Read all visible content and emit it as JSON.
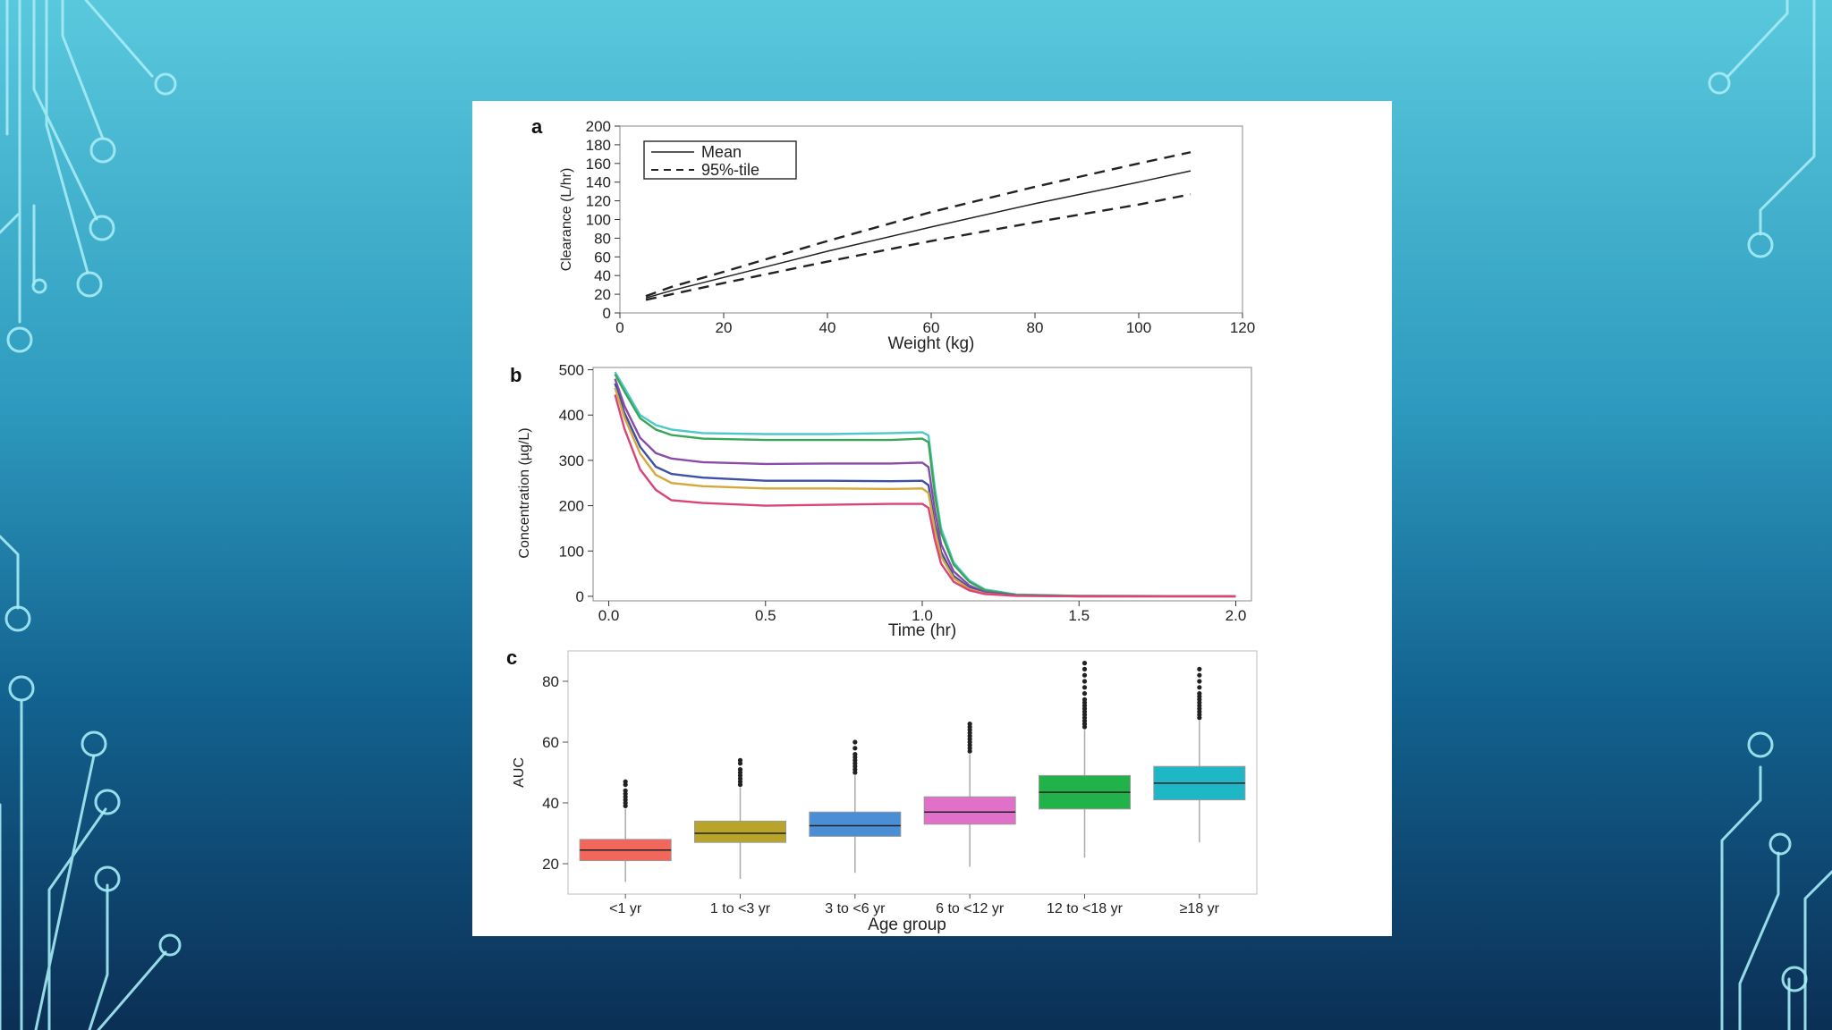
{
  "chart_data": [
    {
      "panel": "a",
      "type": "line",
      "xlabel": "Weight (kg)",
      "ylabel": "Clearance (L/hr)",
      "xlim": [
        0,
        120
      ],
      "ylim": [
        0,
        200
      ],
      "xticks": [
        0,
        20,
        40,
        60,
        80,
        100,
        120
      ],
      "yticks": [
        0,
        20,
        40,
        60,
        80,
        100,
        120,
        140,
        160,
        180,
        200
      ],
      "legend_position": "top-left",
      "grid": false,
      "series": [
        {
          "name": "Mean",
          "style": "solid",
          "x": [
            5,
            10,
            20,
            40,
            60,
            80,
            100,
            110
          ],
          "y": [
            16,
            24,
            38,
            66,
            92,
            117,
            140,
            152
          ]
        },
        {
          "name": "95%-tile",
          "style": "dashed",
          "x": [
            5,
            10,
            20,
            40,
            60,
            80,
            100,
            110
          ],
          "y": [
            18,
            28,
            44,
            77,
            108,
            135,
            160,
            172
          ]
        },
        {
          "name": "95%-tile",
          "style": "dashed",
          "show_in_legend": false,
          "x": [
            5,
            10,
            20,
            40,
            60,
            80,
            100,
            110
          ],
          "y": [
            14,
            20,
            32,
            55,
            77,
            97,
            116,
            127
          ]
        }
      ]
    },
    {
      "panel": "b",
      "type": "line",
      "xlabel": "Time (hr)",
      "ylabel": "Concentration (µg/L)",
      "xlim": [
        -0.05,
        2.05
      ],
      "ylim": [
        -10,
        505
      ],
      "xticks": [
        0.0,
        0.5,
        1.0,
        1.5,
        2.0
      ],
      "xtick_labels": [
        "0.0",
        "0.5",
        "1.0",
        "1.5",
        "2.0"
      ],
      "yticks": [
        0,
        100,
        200,
        300,
        400,
        500
      ],
      "grid": false,
      "x": [
        0.02,
        0.05,
        0.1,
        0.15,
        0.2,
        0.3,
        0.5,
        0.7,
        0.9,
        1.0,
        1.02,
        1.04,
        1.06,
        1.1,
        1.15,
        1.2,
        1.3,
        1.5,
        2.0
      ],
      "series": [
        {
          "color": "#4fc8c8",
          "values": [
            495,
            460,
            400,
            378,
            368,
            360,
            358,
            358,
            360,
            362,
            355,
            240,
            150,
            75,
            35,
            15,
            4,
            1,
            0
          ]
        },
        {
          "color": "#3aa655",
          "values": [
            490,
            452,
            393,
            368,
            356,
            348,
            345,
            345,
            345,
            348,
            340,
            225,
            140,
            70,
            32,
            13,
            3,
            1,
            0
          ]
        },
        {
          "color": "#8a4aa8",
          "values": [
            480,
            420,
            350,
            316,
            304,
            296,
            292,
            293,
            293,
            295,
            285,
            190,
            115,
            55,
            24,
            9,
            2,
            0,
            0
          ]
        },
        {
          "color": "#3d4fa8",
          "values": [
            470,
            405,
            330,
            286,
            270,
            262,
            255,
            255,
            254,
            255,
            245,
            160,
            98,
            45,
            19,
            7,
            2,
            0,
            0
          ]
        },
        {
          "color": "#d6a83a",
          "values": [
            460,
            395,
            315,
            268,
            250,
            243,
            238,
            238,
            237,
            238,
            228,
            148,
            88,
            40,
            16,
            6,
            1,
            0,
            0
          ]
        },
        {
          "color": "#d9447a",
          "values": [
            445,
            370,
            280,
            235,
            212,
            206,
            200,
            202,
            204,
            204,
            195,
            125,
            72,
            32,
            13,
            5,
            1,
            0,
            0
          ]
        }
      ]
    },
    {
      "panel": "c",
      "type": "box",
      "xlabel": "Age group",
      "ylabel": "AUC",
      "ylim": [
        10,
        90
      ],
      "yticks": [
        20,
        40,
        60,
        80
      ],
      "grid": false,
      "categories": [
        "<1 yr",
        "1 to <3 yr",
        "3 to <6 yr",
        "6 to <12 yr",
        "12 to <18 yr",
        "≥18 yr"
      ],
      "boxes": [
        {
          "min": 14,
          "q1": 21,
          "median": 24.5,
          "q3": 28,
          "max": 38,
          "outliers": [
            39,
            40,
            41,
            42,
            43,
            44,
            46,
            47
          ],
          "color": "#f2665c"
        },
        {
          "min": 15,
          "q1": 27,
          "median": 30,
          "q3": 34,
          "max": 45,
          "outliers": [
            46,
            47,
            48,
            49,
            50,
            51,
            53,
            54
          ],
          "color": "#b8a42a"
        },
        {
          "min": 17,
          "q1": 29,
          "median": 32.5,
          "q3": 37,
          "max": 49,
          "outliers": [
            50,
            51,
            52,
            53,
            54,
            55,
            56,
            58,
            60
          ],
          "color": "#4a8fd6"
        },
        {
          "min": 19,
          "q1": 33,
          "median": 37,
          "q3": 42,
          "max": 56,
          "outliers": [
            57,
            58,
            59,
            60,
            61,
            62,
            63,
            64,
            65,
            66
          ],
          "color": "#e070c8"
        },
        {
          "min": 22,
          "q1": 38,
          "median": 43.5,
          "q3": 49,
          "max": 64,
          "outliers": [
            65,
            66,
            67,
            68,
            69,
            70,
            71,
            72,
            73,
            74,
            76,
            78,
            80,
            82,
            84,
            86
          ],
          "color": "#22b24a"
        },
        {
          "min": 27,
          "q1": 41,
          "median": 46.5,
          "q3": 52,
          "max": 67,
          "outliers": [
            68,
            69,
            70,
            71,
            72,
            73,
            74,
            75,
            76,
            78,
            80,
            82,
            84
          ],
          "color": "#1fb6c6"
        }
      ]
    }
  ]
}
